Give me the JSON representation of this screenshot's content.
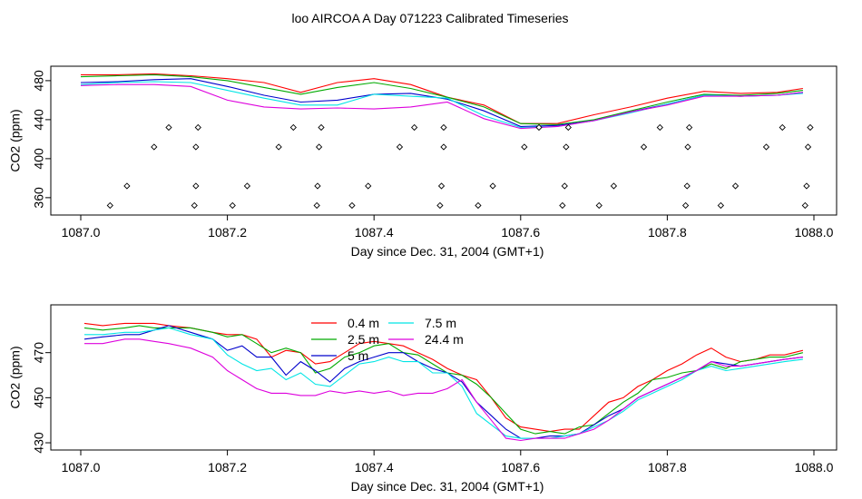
{
  "figure_title": "loo AIRCOA A  Day 071223  Calibrated Timeseries",
  "chart_data": [
    {
      "type": "line",
      "panel": "top",
      "xlabel": "Day since Dec. 31, 2004 (GMT+1)",
      "ylabel": "CO2 (ppm)",
      "xlim": [
        1087.0,
        1088.0
      ],
      "ylim": [
        345,
        492
      ],
      "xticks": [
        1087.0,
        1087.2,
        1087.4,
        1087.6,
        1087.8,
        1088.0
      ],
      "xtick_labels": [
        "1087.0",
        "1087.2",
        "1087.4",
        "1087.6",
        "1087.8",
        "1088.0"
      ],
      "yticks": [
        360,
        400,
        440,
        480
      ],
      "ytick_labels": [
        "360",
        "400",
        "440",
        "480"
      ],
      "grid": false,
      "legend": "none",
      "series": [
        {
          "color": "#ff0000",
          "x": [
            1087.0,
            1087.05,
            1087.1,
            1087.15,
            1087.2,
            1087.25,
            1087.3,
            1087.35,
            1087.4,
            1087.45,
            1087.5,
            1087.55,
            1087.6,
            1087.65,
            1087.7,
            1087.75,
            1087.8,
            1087.85,
            1087.9,
            1087.95,
            1087.985
          ],
          "values": [
            486,
            486,
            487,
            485,
            482,
            478,
            468,
            478,
            482,
            476,
            463,
            455,
            436,
            436,
            445,
            453,
            462,
            469,
            467,
            468,
            472
          ]
        },
        {
          "color": "#00aa00",
          "x": [
            1087.0,
            1087.05,
            1087.1,
            1087.15,
            1087.2,
            1087.25,
            1087.3,
            1087.35,
            1087.4,
            1087.45,
            1087.5,
            1087.55,
            1087.6,
            1087.65,
            1087.7,
            1087.75,
            1087.8,
            1087.85,
            1087.9,
            1087.95,
            1087.985
          ],
          "values": [
            484,
            485,
            486,
            484,
            480,
            473,
            466,
            473,
            478,
            472,
            463,
            453,
            436,
            435,
            440,
            449,
            458,
            466,
            465,
            467,
            470
          ]
        },
        {
          "color": "#0000cc",
          "x": [
            1087.0,
            1087.05,
            1087.1,
            1087.15,
            1087.2,
            1087.25,
            1087.3,
            1087.35,
            1087.4,
            1087.45,
            1087.5,
            1087.55,
            1087.6,
            1087.65,
            1087.7,
            1087.75,
            1087.8,
            1087.85,
            1087.9,
            1087.95,
            1087.985
          ],
          "values": [
            478,
            479,
            481,
            482,
            474,
            465,
            458,
            460,
            466,
            467,
            461,
            449,
            433,
            434,
            439,
            448,
            456,
            465,
            464,
            465,
            468
          ]
        },
        {
          "color": "#00e5e5",
          "x": [
            1087.0,
            1087.05,
            1087.1,
            1087.15,
            1087.2,
            1087.25,
            1087.3,
            1087.35,
            1087.4,
            1087.45,
            1087.5,
            1087.55,
            1087.6,
            1087.65,
            1087.7,
            1087.75,
            1087.8,
            1087.85,
            1087.9,
            1087.95,
            1087.985
          ],
          "values": [
            476,
            478,
            479,
            478,
            470,
            462,
            455,
            455,
            466,
            464,
            462,
            444,
            432,
            433,
            439,
            447,
            456,
            465,
            464,
            465,
            467
          ]
        },
        {
          "color": "#dd00dd",
          "x": [
            1087.0,
            1087.05,
            1087.1,
            1087.15,
            1087.2,
            1087.25,
            1087.3,
            1087.35,
            1087.4,
            1087.45,
            1087.5,
            1087.55,
            1087.6,
            1087.65,
            1087.7,
            1087.75,
            1087.8,
            1087.85,
            1087.9,
            1087.95,
            1087.985
          ],
          "values": [
            475,
            476,
            476,
            474,
            460,
            453,
            451,
            452,
            451,
            453,
            458,
            441,
            431,
            433,
            439,
            448,
            455,
            464,
            464,
            465,
            468
          ]
        }
      ],
      "markers": {
        "symbol": "diamond",
        "x": [
          1087.04,
          1087.063,
          1087.1,
          1087.12,
          1087.155,
          1087.157,
          1087.157,
          1087.16,
          1087.207,
          1087.227,
          1087.27,
          1087.29,
          1087.322,
          1087.323,
          1087.325,
          1087.328,
          1087.37,
          1087.392,
          1087.435,
          1087.455,
          1087.49,
          1087.492,
          1087.495,
          1087.495,
          1087.542,
          1087.562,
          1087.605,
          1087.625,
          1087.657,
          1087.66,
          1087.662,
          1087.665,
          1087.707,
          1087.727,
          1087.768,
          1087.79,
          1087.825,
          1087.827,
          1087.828,
          1087.83,
          1087.873,
          1087.893,
          1087.935,
          1087.957,
          1087.988,
          1087.99,
          1087.992,
          1087.995
        ],
        "y": [
          352,
          372,
          412,
          432,
          352,
          372,
          412,
          432,
          352,
          372,
          412,
          432,
          352,
          372,
          412,
          432,
          352,
          372,
          412,
          432,
          352,
          372,
          412,
          432,
          352,
          372,
          412,
          432,
          352,
          372,
          412,
          432,
          352,
          372,
          412,
          432,
          352,
          372,
          412,
          432,
          352,
          372,
          412,
          432,
          352,
          372,
          412,
          432
        ]
      }
    },
    {
      "type": "line",
      "panel": "bottom",
      "xlabel": "Day since Dec. 31, 2004 (GMT+1)",
      "ylabel": "CO2 (ppm)",
      "xlim": [
        1087.0,
        1088.0
      ],
      "ylim": [
        428,
        490
      ],
      "xticks": [
        1087.0,
        1087.2,
        1087.4,
        1087.6,
        1087.8,
        1088.0
      ],
      "xtick_labels": [
        "1087.0",
        "1087.2",
        "1087.4",
        "1087.6",
        "1087.8",
        "1088.0"
      ],
      "yticks": [
        430,
        450,
        470
      ],
      "ytick_labels": [
        "430",
        "450",
        "470"
      ],
      "grid": false,
      "legend": "top-center",
      "series": [
        {
          "name": "0.4 m",
          "color": "#ff0000",
          "x": [
            1087.005,
            1087.03,
            1087.06,
            1087.08,
            1087.1,
            1087.12,
            1087.15,
            1087.18,
            1087.2,
            1087.22,
            1087.24,
            1087.26,
            1087.28,
            1087.3,
            1087.32,
            1087.34,
            1087.36,
            1087.38,
            1087.4,
            1087.42,
            1087.44,
            1087.46,
            1087.48,
            1087.5,
            1087.52,
            1087.54,
            1087.56,
            1087.58,
            1087.6,
            1087.62,
            1087.64,
            1087.66,
            1087.68,
            1087.7,
            1087.72,
            1087.74,
            1087.76,
            1087.78,
            1087.8,
            1087.82,
            1087.84,
            1087.86,
            1087.88,
            1087.9,
            1087.92,
            1087.94,
            1087.96,
            1087.985
          ],
          "values": [
            483,
            482,
            483,
            483,
            483,
            482,
            481,
            479,
            478,
            478,
            476,
            468,
            471,
            470,
            465,
            466,
            470,
            474,
            475,
            474,
            473,
            470,
            467,
            463,
            460,
            458,
            450,
            441,
            437,
            436,
            435,
            436,
            436,
            442,
            448,
            450,
            455,
            458,
            462,
            465,
            469,
            472,
            468,
            466,
            467,
            469,
            469,
            471
          ]
        },
        {
          "name": "2.5 m",
          "color": "#00aa00",
          "x": [
            1087.005,
            1087.03,
            1087.06,
            1087.08,
            1087.1,
            1087.12,
            1087.15,
            1087.18,
            1087.2,
            1087.22,
            1087.24,
            1087.26,
            1087.28,
            1087.3,
            1087.32,
            1087.34,
            1087.36,
            1087.38,
            1087.4,
            1087.42,
            1087.44,
            1087.46,
            1087.48,
            1087.5,
            1087.52,
            1087.54,
            1087.56,
            1087.58,
            1087.6,
            1087.62,
            1087.64,
            1087.66,
            1087.68,
            1087.7,
            1087.72,
            1087.74,
            1087.76,
            1087.78,
            1087.8,
            1087.82,
            1087.84,
            1087.86,
            1087.88,
            1087.9,
            1087.92,
            1087.94,
            1087.96,
            1087.985
          ],
          "values": [
            481,
            480,
            481,
            482,
            481,
            481,
            481,
            479,
            477,
            478,
            474,
            470,
            472,
            470,
            461,
            463,
            468,
            470,
            473,
            474,
            470,
            469,
            465,
            461,
            460,
            456,
            450,
            443,
            436,
            434,
            435,
            434,
            437,
            438,
            443,
            448,
            452,
            458,
            459,
            461,
            462,
            465,
            463,
            466,
            467,
            468,
            468,
            470
          ]
        },
        {
          "name": "5 m",
          "color": "#0000cc",
          "x": [
            1087.005,
            1087.03,
            1087.06,
            1087.08,
            1087.1,
            1087.12,
            1087.15,
            1087.18,
            1087.2,
            1087.22,
            1087.24,
            1087.26,
            1087.28,
            1087.3,
            1087.32,
            1087.34,
            1087.36,
            1087.38,
            1087.4,
            1087.42,
            1087.44,
            1087.46,
            1087.48,
            1087.5,
            1087.52,
            1087.54,
            1087.56,
            1087.58,
            1087.6,
            1087.62,
            1087.64,
            1087.66,
            1087.68,
            1087.7,
            1087.72,
            1087.74,
            1087.76,
            1087.78,
            1087.8,
            1087.82,
            1087.84,
            1087.86,
            1087.88,
            1087.9,
            1087.92,
            1087.94,
            1087.96,
            1087.985
          ],
          "values": [
            476,
            477,
            478,
            478,
            480,
            482,
            479,
            476,
            471,
            473,
            468,
            468,
            460,
            466,
            462,
            457,
            463,
            466,
            468,
            470,
            470,
            466,
            463,
            461,
            457,
            448,
            442,
            436,
            432,
            432,
            433,
            433,
            434,
            438,
            442,
            445,
            450,
            453,
            456,
            459,
            462,
            466,
            465,
            464,
            465,
            466,
            467,
            468
          ]
        },
        {
          "name": "7.5 m",
          "color": "#00e5e5",
          "x": [
            1087.005,
            1087.03,
            1087.06,
            1087.08,
            1087.1,
            1087.12,
            1087.15,
            1087.18,
            1087.2,
            1087.22,
            1087.24,
            1087.26,
            1087.28,
            1087.3,
            1087.32,
            1087.34,
            1087.36,
            1087.38,
            1087.4,
            1087.42,
            1087.44,
            1087.46,
            1087.48,
            1087.5,
            1087.52,
            1087.54,
            1087.56,
            1087.58,
            1087.6,
            1087.62,
            1087.64,
            1087.66,
            1087.68,
            1087.7,
            1087.72,
            1087.74,
            1087.76,
            1087.78,
            1087.8,
            1087.82,
            1087.84,
            1087.86,
            1087.88,
            1087.9,
            1087.92,
            1087.94,
            1087.96,
            1087.985
          ],
          "values": [
            478,
            478,
            479,
            479,
            480,
            481,
            478,
            476,
            469,
            465,
            462,
            463,
            458,
            461,
            456,
            455,
            460,
            465,
            466,
            468,
            466,
            466,
            461,
            461,
            455,
            443,
            438,
            433,
            432,
            432,
            432,
            433,
            434,
            437,
            440,
            444,
            449,
            452,
            455,
            458,
            462,
            464,
            462,
            463,
            464,
            465,
            466,
            467
          ]
        },
        {
          "name": "24.4 m",
          "color": "#dd00dd",
          "x": [
            1087.005,
            1087.03,
            1087.06,
            1087.08,
            1087.1,
            1087.12,
            1087.15,
            1087.18,
            1087.2,
            1087.22,
            1087.24,
            1087.26,
            1087.28,
            1087.3,
            1087.32,
            1087.34,
            1087.36,
            1087.38,
            1087.4,
            1087.42,
            1087.44,
            1087.46,
            1087.48,
            1087.5,
            1087.52,
            1087.54,
            1087.56,
            1087.58,
            1087.6,
            1087.62,
            1087.64,
            1087.66,
            1087.68,
            1087.7,
            1087.72,
            1087.74,
            1087.76,
            1087.78,
            1087.8,
            1087.82,
            1087.84,
            1087.86,
            1087.88,
            1087.9,
            1087.92,
            1087.94,
            1087.96,
            1087.985
          ],
          "values": [
            474,
            474,
            476,
            476,
            475,
            474,
            472,
            468,
            462,
            458,
            454,
            452,
            452,
            451,
            451,
            453,
            452,
            453,
            452,
            453,
            451,
            452,
            452,
            454,
            458,
            448,
            440,
            432,
            431,
            432,
            432,
            432,
            434,
            436,
            440,
            445,
            450,
            453,
            456,
            459,
            462,
            466,
            464,
            464,
            465,
            466,
            467,
            468
          ]
        }
      ]
    }
  ]
}
